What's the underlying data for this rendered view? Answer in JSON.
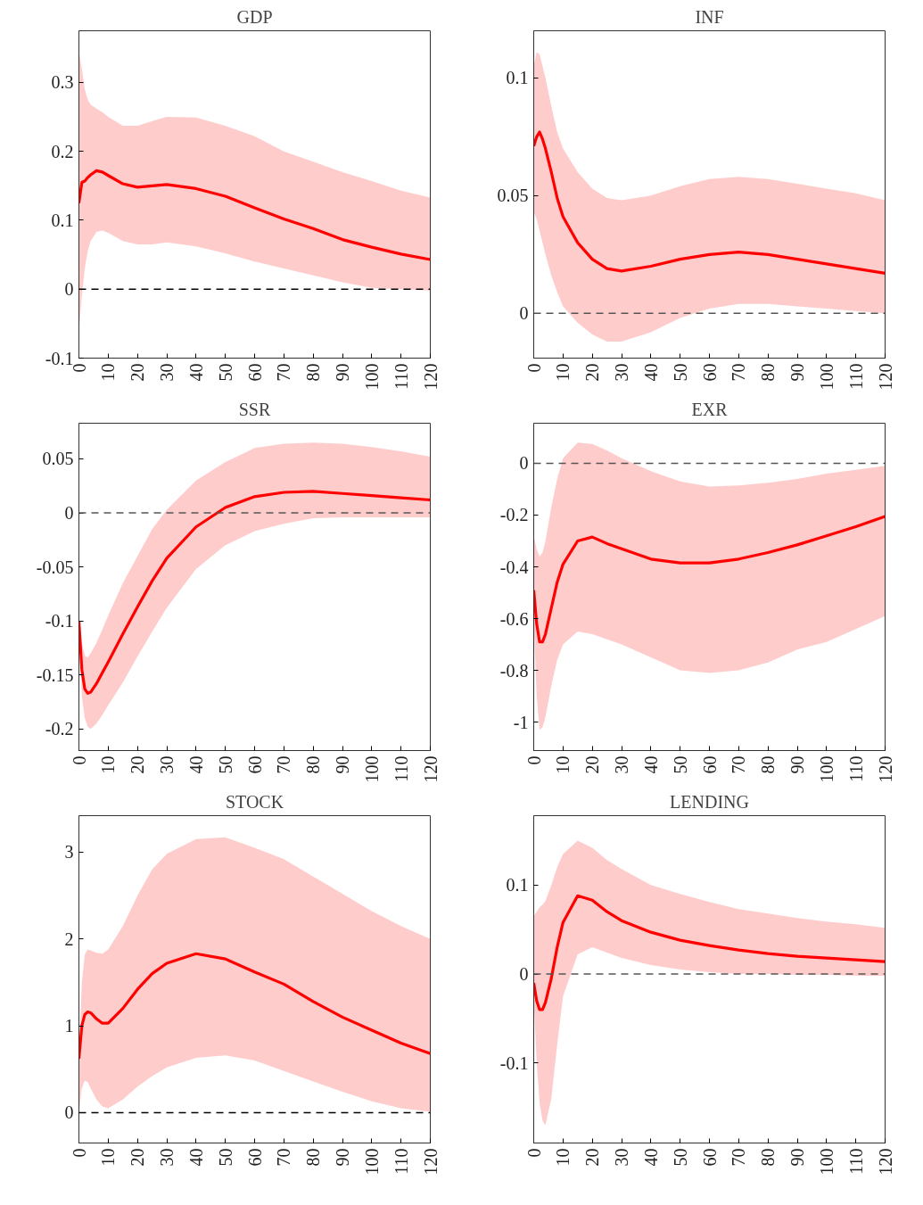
{
  "chart_data": [
    {
      "type": "line",
      "title": "GDP",
      "x": [
        0,
        1,
        2,
        3,
        4,
        6,
        8,
        10,
        15,
        20,
        25,
        30,
        40,
        50,
        60,
        70,
        80,
        90,
        100,
        110,
        120
      ],
      "xlim": [
        0,
        120
      ],
      "xticks": [
        0,
        10,
        20,
        30,
        40,
        50,
        60,
        70,
        80,
        90,
        100,
        110,
        120
      ],
      "ylim": [
        -0.1,
        0.375
      ],
      "yticks": [
        -0.1,
        0,
        0.1,
        0.2,
        0.3
      ],
      "grid": false,
      "series": [
        {
          "color": "#ff0000",
          "values": [
            0.125,
            0.155,
            0.157,
            0.162,
            0.166,
            0.172,
            0.17,
            0.165,
            0.153,
            0.148,
            0.15,
            0.152,
            0.146,
            0.135,
            0.118,
            0.102,
            0.088,
            0.072,
            0.061,
            0.051,
            0.043
          ],
          "upper": [
            0.345,
            0.32,
            0.29,
            0.275,
            0.268,
            0.262,
            0.257,
            0.25,
            0.237,
            0.237,
            0.244,
            0.25,
            0.249,
            0.237,
            0.222,
            0.2,
            0.185,
            0.17,
            0.157,
            0.143,
            0.133
          ],
          "lower": [
            -0.06,
            -0.01,
            0.03,
            0.055,
            0.07,
            0.083,
            0.085,
            0.082,
            0.07,
            0.065,
            0.065,
            0.068,
            0.062,
            0.052,
            0.04,
            0.03,
            0.02,
            0.01,
            0.002,
            0.0,
            -0.002
          ]
        }
      ],
      "ref_lines": [
        {
          "axis": "y",
          "value": 0,
          "color": "#000000",
          "line_style": "dashed"
        }
      ]
    },
    {
      "type": "line",
      "title": "INF",
      "x": [
        0,
        1,
        2,
        3,
        4,
        6,
        8,
        10,
        15,
        20,
        25,
        30,
        40,
        50,
        60,
        70,
        80,
        90,
        100,
        110,
        120
      ],
      "xlim": [
        0,
        120
      ],
      "xticks": [
        0,
        10,
        20,
        30,
        40,
        50,
        60,
        70,
        80,
        90,
        100,
        110,
        120
      ],
      "ylim": [
        -0.019,
        0.12
      ],
      "yticks": [
        0,
        0.05,
        0.1
      ],
      "grid": false,
      "series": [
        {
          "color": "#ff0000",
          "values": [
            0.071,
            0.075,
            0.077,
            0.074,
            0.07,
            0.06,
            0.049,
            0.041,
            0.03,
            0.023,
            0.019,
            0.018,
            0.02,
            0.023,
            0.025,
            0.026,
            0.025,
            0.023,
            0.021,
            0.019,
            0.017
          ],
          "upper": [
            0.105,
            0.111,
            0.11,
            0.105,
            0.1,
            0.088,
            0.077,
            0.07,
            0.06,
            0.053,
            0.049,
            0.048,
            0.05,
            0.054,
            0.057,
            0.058,
            0.057,
            0.055,
            0.053,
            0.051,
            0.048
          ],
          "lower": [
            0.043,
            0.04,
            0.035,
            0.03,
            0.025,
            0.016,
            0.009,
            0.003,
            -0.004,
            -0.009,
            -0.012,
            -0.012,
            -0.008,
            -0.002,
            0.002,
            0.004,
            0.004,
            0.003,
            0.002,
            0.001,
            0.0
          ]
        }
      ],
      "ref_lines": [
        {
          "axis": "y",
          "value": 0,
          "color": "#555555",
          "line_style": "dashed"
        }
      ]
    },
    {
      "type": "line",
      "title": "SSR",
      "x": [
        0,
        1,
        2,
        3,
        4,
        6,
        8,
        10,
        15,
        20,
        25,
        30,
        40,
        50,
        60,
        70,
        80,
        90,
        100,
        110,
        120
      ],
      "xlim": [
        0,
        120
      ],
      "xticks": [
        0,
        10,
        20,
        30,
        40,
        50,
        60,
        70,
        80,
        90,
        100,
        110,
        120
      ],
      "ylim": [
        -0.22,
        0.083
      ],
      "yticks": [
        -0.2,
        -0.15,
        -0.1,
        -0.05,
        0,
        0.05
      ],
      "grid": false,
      "series": [
        {
          "color": "#ff0000",
          "values": [
            -0.1,
            -0.145,
            -0.163,
            -0.167,
            -0.166,
            -0.158,
            -0.148,
            -0.138,
            -0.112,
            -0.087,
            -0.063,
            -0.042,
            -0.013,
            0.005,
            0.015,
            0.019,
            0.02,
            0.018,
            0.016,
            0.014,
            0.012
          ],
          "upper": [
            -0.1,
            -0.12,
            -0.132,
            -0.134,
            -0.13,
            -0.12,
            -0.108,
            -0.095,
            -0.065,
            -0.04,
            -0.015,
            0.003,
            0.03,
            0.047,
            0.06,
            0.064,
            0.065,
            0.064,
            0.061,
            0.057,
            0.052
          ],
          "lower": [
            -0.1,
            -0.17,
            -0.19,
            -0.198,
            -0.2,
            -0.195,
            -0.187,
            -0.178,
            -0.157,
            -0.133,
            -0.11,
            -0.088,
            -0.052,
            -0.03,
            -0.017,
            -0.01,
            -0.005,
            -0.004,
            -0.004,
            -0.004,
            -0.004
          ]
        }
      ],
      "ref_lines": [
        {
          "axis": "y",
          "value": 0,
          "color": "#555555",
          "line_style": "dashed"
        }
      ]
    },
    {
      "type": "line",
      "title": "EXR",
      "x": [
        0,
        1,
        2,
        3,
        4,
        6,
        8,
        10,
        15,
        20,
        25,
        30,
        40,
        50,
        60,
        70,
        80,
        90,
        100,
        110,
        120
      ],
      "xlim": [
        0,
        120
      ],
      "xticks": [
        0,
        10,
        20,
        30,
        40,
        50,
        60,
        70,
        80,
        90,
        100,
        110,
        120
      ],
      "ylim": [
        -1.11,
        0.155
      ],
      "yticks": [
        -1,
        -0.8,
        -0.6,
        -0.4,
        -0.2,
        0
      ],
      "grid": false,
      "series": [
        {
          "color": "#ff0000",
          "values": [
            -0.49,
            -0.62,
            -0.69,
            -0.69,
            -0.66,
            -0.56,
            -0.46,
            -0.39,
            -0.3,
            -0.285,
            -0.31,
            -0.33,
            -0.37,
            -0.385,
            -0.385,
            -0.37,
            -0.345,
            -0.315,
            -0.28,
            -0.245,
            -0.205
          ],
          "upper": [
            -0.28,
            -0.33,
            -0.36,
            -0.345,
            -0.3,
            -0.17,
            -0.06,
            0.02,
            0.08,
            0.075,
            0.05,
            0.02,
            -0.03,
            -0.07,
            -0.09,
            -0.085,
            -0.075,
            -0.06,
            -0.04,
            -0.025,
            -0.01
          ],
          "lower": [
            -0.62,
            -0.9,
            -1.03,
            -1.02,
            -0.98,
            -0.86,
            -0.76,
            -0.7,
            -0.65,
            -0.66,
            -0.68,
            -0.7,
            -0.75,
            -0.8,
            -0.81,
            -0.8,
            -0.77,
            -0.72,
            -0.69,
            -0.64,
            -0.59
          ]
        }
      ],
      "ref_lines": [
        {
          "axis": "y",
          "value": 0,
          "color": "#555555",
          "line_style": "dashed"
        }
      ]
    },
    {
      "type": "line",
      "title": "STOCK",
      "x": [
        0,
        1,
        2,
        3,
        4,
        6,
        8,
        10,
        15,
        20,
        25,
        30,
        40,
        50,
        60,
        70,
        80,
        90,
        100,
        110,
        120
      ],
      "xlim": [
        0,
        120
      ],
      "xticks": [
        0,
        10,
        20,
        30,
        40,
        50,
        60,
        70,
        80,
        90,
        100,
        110,
        120
      ],
      "ylim": [
        -0.35,
        3.42
      ],
      "yticks": [
        0,
        1,
        2,
        3
      ],
      "grid": false,
      "series": [
        {
          "color": "#ff0000",
          "values": [
            0.62,
            1.0,
            1.13,
            1.16,
            1.15,
            1.08,
            1.03,
            1.03,
            1.2,
            1.42,
            1.6,
            1.72,
            1.83,
            1.77,
            1.62,
            1.48,
            1.28,
            1.1,
            0.95,
            0.8,
            0.68
          ],
          "upper": [
            0.7,
            1.5,
            1.82,
            1.88,
            1.87,
            1.84,
            1.83,
            1.88,
            2.15,
            2.5,
            2.8,
            2.98,
            3.15,
            3.17,
            3.05,
            2.92,
            2.72,
            2.52,
            2.32,
            2.15,
            2.0
          ],
          "lower": [
            0.0,
            0.28,
            0.37,
            0.35,
            0.28,
            0.15,
            0.07,
            0.05,
            0.15,
            0.3,
            0.42,
            0.52,
            0.63,
            0.66,
            0.6,
            0.48,
            0.36,
            0.24,
            0.13,
            0.05,
            0.01
          ]
        }
      ],
      "ref_lines": [
        {
          "axis": "y",
          "value": 0,
          "color": "#000000",
          "line_style": "dashed"
        }
      ]
    },
    {
      "type": "line",
      "title": "LENDING",
      "x": [
        0,
        1,
        2,
        3,
        4,
        6,
        8,
        10,
        15,
        20,
        25,
        30,
        40,
        50,
        60,
        70,
        80,
        90,
        100,
        110,
        120
      ],
      "xlim": [
        0,
        120
      ],
      "xticks": [
        0,
        10,
        20,
        30,
        40,
        50,
        60,
        70,
        80,
        90,
        100,
        110,
        120
      ],
      "ylim": [
        -0.19,
        0.178
      ],
      "yticks": [
        -0.1,
        0,
        0.1
      ],
      "grid": false,
      "series": [
        {
          "color": "#ff0000",
          "values": [
            -0.01,
            -0.03,
            -0.04,
            -0.04,
            -0.032,
            -0.005,
            0.03,
            0.058,
            0.088,
            0.083,
            0.07,
            0.06,
            0.047,
            0.038,
            0.032,
            0.027,
            0.023,
            0.02,
            0.018,
            0.016,
            0.014
          ],
          "upper": [
            0.065,
            0.07,
            0.075,
            0.078,
            0.082,
            0.1,
            0.12,
            0.135,
            0.15,
            0.142,
            0.128,
            0.118,
            0.1,
            0.09,
            0.081,
            0.073,
            0.068,
            0.063,
            0.059,
            0.056,
            0.052
          ],
          "lower": [
            -0.03,
            -0.1,
            -0.145,
            -0.165,
            -0.17,
            -0.14,
            -0.08,
            -0.025,
            0.022,
            0.03,
            0.024,
            0.018,
            0.01,
            0.005,
            0.002,
            0.0,
            0.0,
            -0.001,
            -0.001,
            -0.002,
            -0.002
          ]
        }
      ],
      "ref_lines": [
        {
          "axis": "y",
          "value": 0,
          "color": "#555555",
          "line_style": "dashed"
        }
      ]
    }
  ]
}
